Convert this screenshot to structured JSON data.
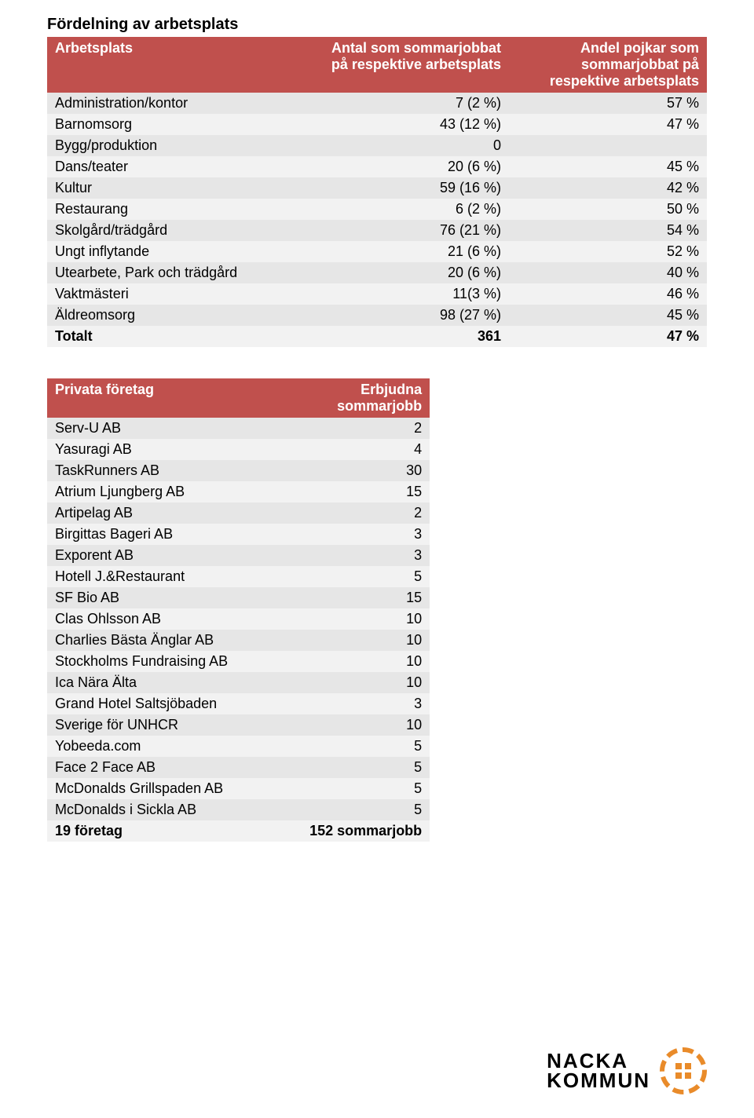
{
  "title": "Fördelning av arbetsplats",
  "table1": {
    "headers": [
      "Arbetsplats",
      "Antal som sommarjobbat på respektive arbetsplats",
      "Andel pojkar som sommarjobbat på respektive arbetsplats"
    ],
    "rows": [
      [
        "Administration/kontor",
        "7 (2 %)",
        "57 %"
      ],
      [
        "Barnomsorg",
        "43 (12 %)",
        "47 %"
      ],
      [
        "Bygg/produktion",
        "0",
        ""
      ],
      [
        "Dans/teater",
        "20 (6 %)",
        "45 %"
      ],
      [
        "Kultur",
        "59 (16 %)",
        "42 %"
      ],
      [
        "Restaurang",
        "6 (2 %)",
        "50 %"
      ],
      [
        "Skolgård/trädgård",
        "76 (21 %)",
        "54 %"
      ],
      [
        "Ungt inflytande",
        "21 (6 %)",
        "52 %"
      ],
      [
        "Utearbete, Park och trädgård",
        "20 (6 %)",
        "40 %"
      ],
      [
        "Vaktmästeri",
        "11(3 %)",
        "46 %"
      ],
      [
        "Äldreomsorg",
        "98 (27 %)",
        "45 %"
      ]
    ],
    "total": [
      "Totalt",
      "361",
      "47 %"
    ]
  },
  "table2": {
    "headers": [
      "Privata företag",
      "Erbjudna sommarjobb"
    ],
    "rows": [
      [
        "Serv-U AB",
        "2"
      ],
      [
        "Yasuragi AB",
        "4"
      ],
      [
        "TaskRunners AB",
        "30"
      ],
      [
        "Atrium Ljungberg AB",
        "15"
      ],
      [
        "Artipelag AB",
        "2"
      ],
      [
        "Birgittas Bageri AB",
        "3"
      ],
      [
        "Exporent AB",
        "3"
      ],
      [
        "Hotell J.&Restaurant",
        "5"
      ],
      [
        "SF Bio AB",
        "15"
      ],
      [
        "Clas Ohlsson AB",
        "10"
      ],
      [
        "Charlies Bästa Änglar AB",
        "10"
      ],
      [
        "Stockholms Fundraising AB",
        "10"
      ],
      [
        "Ica Nära Älta",
        "10"
      ],
      [
        "Grand Hotel Saltsjöbaden",
        "3"
      ],
      [
        "Sverige för UNHCR",
        "10"
      ],
      [
        "Yobeeda.com",
        "5"
      ],
      [
        "Face 2 Face AB",
        "5"
      ],
      [
        "McDonalds Grillspaden AB",
        "5"
      ],
      [
        "McDonalds i Sickla AB",
        "5"
      ]
    ],
    "total": [
      "19 företag",
      "152 sommarjobb"
    ]
  },
  "logo": {
    "line1": "NACKA",
    "line2": "KOMMUN"
  },
  "colors": {
    "header_bg": "#c0504d",
    "row_odd": "#e6e6e6",
    "row_even": "#f2f2f2",
    "brand_orange": "#e98b2a"
  }
}
